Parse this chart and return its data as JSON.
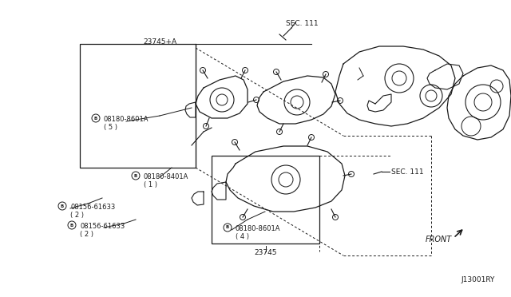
{
  "bg_color": "#ffffff",
  "line_color": "#1a1a1a",
  "part_number_bottom_right": "J13001RY",
  "labels": {
    "sec111_top": "SEC. 111",
    "sec111_right": "SEC. 111",
    "label_23745A": "23745+A",
    "label_08180_8601A_top": "08180-8601A\n( 5 )",
    "label_08180_8401A": "08180-8401A\n( 1 )",
    "label_08156_61633_1": "08156-61633\n( 2 )",
    "label_08156_61633_2": "08156-61633\n( 2 )",
    "label_08180_8601A_bot": "08180-8601A\n( 4 )",
    "label_23745": "23745",
    "label_front": "FRONT"
  }
}
